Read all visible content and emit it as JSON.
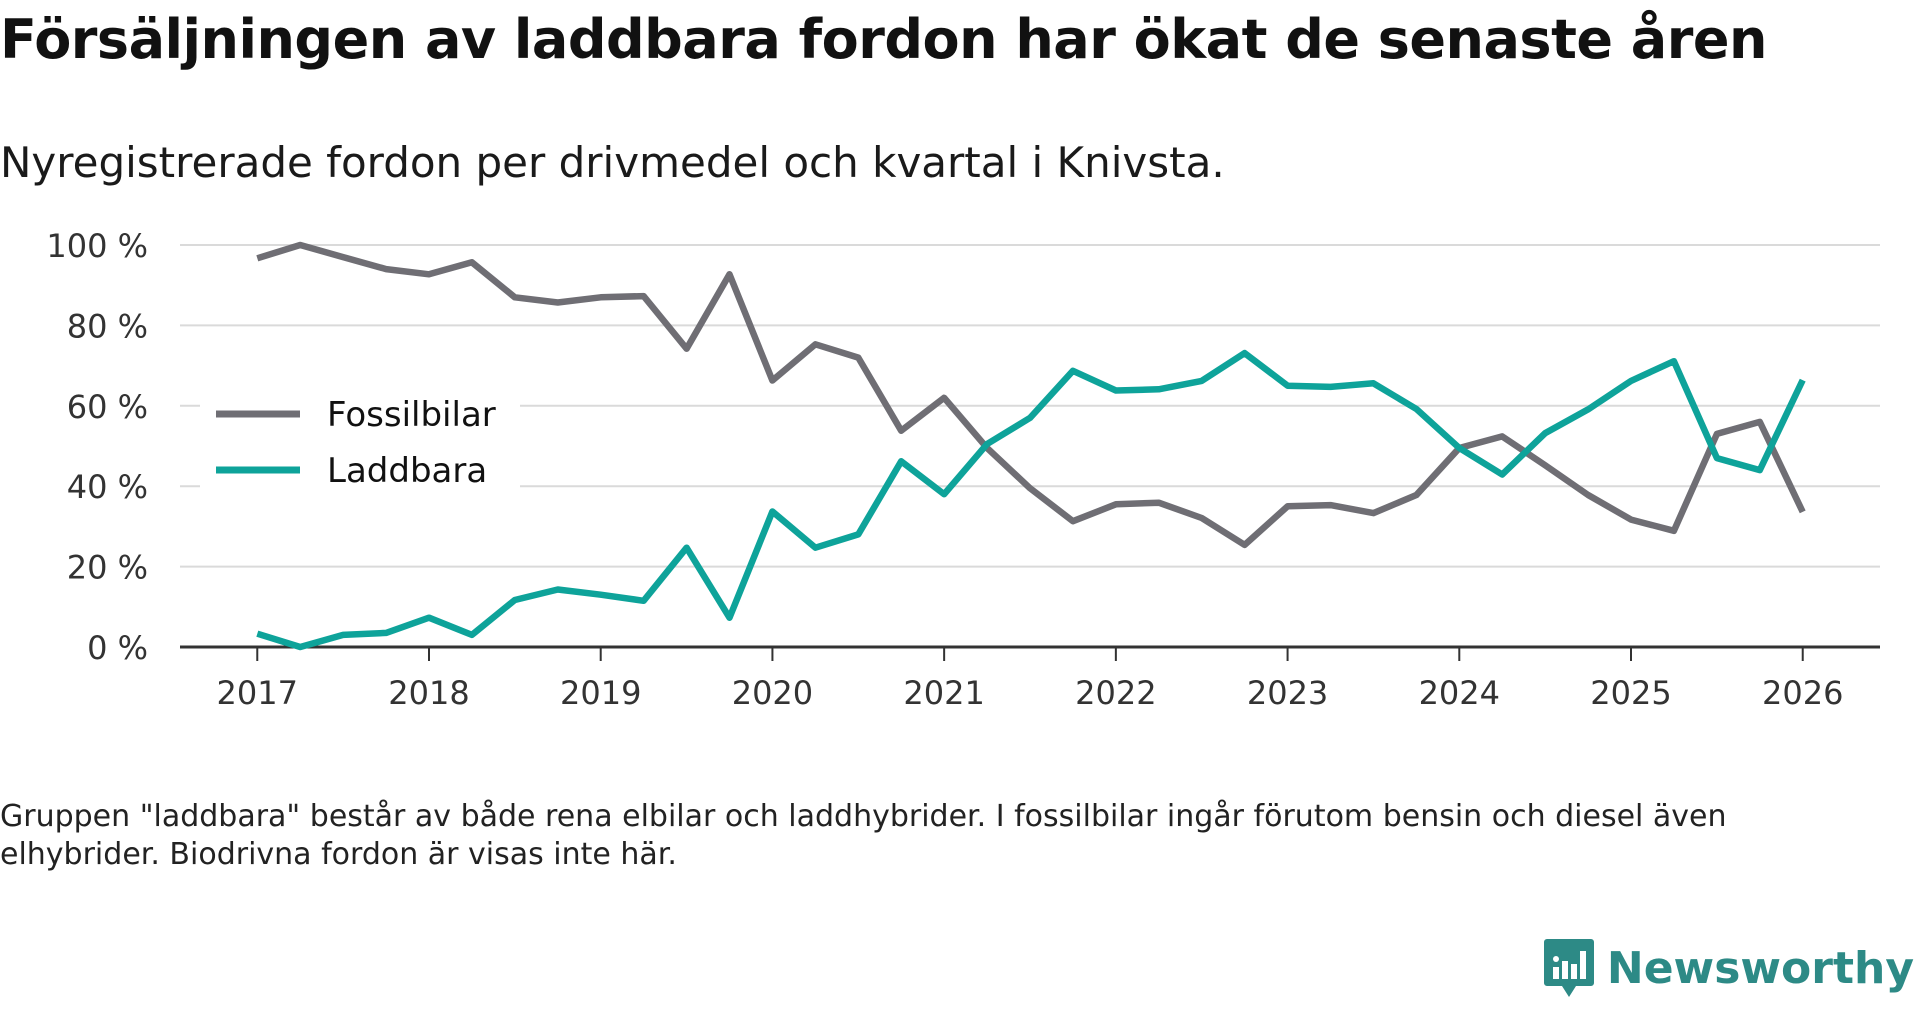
{
  "title": "Försäljningen av laddbara fordon har ökat de senaste åren",
  "subtitle": "Nyregistrerade fordon per drivmedel och kvartal i Knivsta.",
  "note": "Gruppen \"laddbara\" består av både rena elbilar och laddhybrider. I fossilbilar ingår förutom bensin och diesel även elhybrider. Biodrivna fordon är visas inte här.",
  "brand": {
    "name": "Newsworthy",
    "color": "#2d8a86"
  },
  "chart_data": {
    "type": "line",
    "title": "Försäljningen av laddbara fordon har ökat de senaste åren",
    "xlabel": "",
    "ylabel": "",
    "xlim": [
      2016.55,
      2026.45
    ],
    "ylim": [
      0,
      100
    ],
    "yticks": [
      0,
      20,
      40,
      60,
      80,
      100
    ],
    "ytick_labels": [
      "0 %",
      "20 %",
      "40 %",
      "60 %",
      "80 %",
      "100 %"
    ],
    "xticks": [
      2017,
      2018,
      2019,
      2020,
      2021,
      2022,
      2023,
      2024,
      2025,
      2026
    ],
    "xtick_labels": [
      "2017",
      "2018",
      "2019",
      "2020",
      "2021",
      "2022",
      "2023",
      "2024",
      "2025",
      "2026"
    ],
    "grid": true,
    "legend": "left",
    "x": [
      2017.0,
      2017.25,
      2017.5,
      2017.75,
      2018.0,
      2018.25,
      2018.5,
      2018.75,
      2019.0,
      2019.25,
      2019.5,
      2019.75,
      2020.0,
      2020.25,
      2020.5,
      2020.75,
      2021.0,
      2021.25,
      2021.5,
      2021.75,
      2022.0,
      2022.25,
      2022.5,
      2022.75,
      2023.0,
      2023.25,
      2023.5,
      2023.75,
      2024.0,
      2024.25,
      2024.5,
      2024.75,
      2025.0,
      2025.25,
      2025.5,
      2025.75,
      2026.0
    ],
    "series": [
      {
        "name": "Fossilbilar",
        "color": "#6f6e74",
        "values": [
          96.7,
          100,
          97,
          94,
          92.7,
          95.7,
          87,
          85.7,
          87,
          87.3,
          74.2,
          92.7,
          66.3,
          75.3,
          72,
          53.8,
          62,
          49.5,
          39.5,
          31.3,
          35.5,
          35.9,
          32.1,
          25.4,
          35,
          35.3,
          33.3,
          37.8,
          49.5,
          52.4,
          45.2,
          37.8,
          31.7,
          28.9,
          53,
          56,
          33.6
        ]
      },
      {
        "name": "Laddbara",
        "color": "#0ea39a",
        "values": [
          3.3,
          0,
          3,
          3.5,
          7.3,
          3,
          11.7,
          14.3,
          13,
          11.5,
          24.7,
          7.3,
          33.7,
          24.7,
          28,
          46.2,
          38,
          50.5,
          57,
          68.7,
          63.8,
          64.1,
          66.2,
          73.1,
          65,
          64.7,
          65.6,
          59.2,
          49.5,
          42.9,
          53.2,
          59.1,
          66.2,
          71.1,
          47,
          44,
          66.4
        ]
      }
    ]
  }
}
